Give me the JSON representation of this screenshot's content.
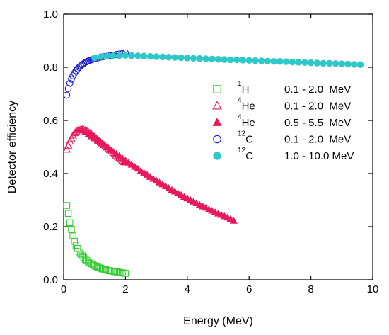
{
  "chart_data": {
    "type": "scatter",
    "xlabel": "Energy (MeV)",
    "ylabel": "Detector efficiency",
    "xlim": [
      0,
      10
    ],
    "ylim": [
      0,
      1.0
    ],
    "x_ticks": [
      0,
      2,
      4,
      6,
      8,
      10
    ],
    "y_ticks": [
      0.0,
      0.2,
      0.4,
      0.6,
      0.8,
      1.0
    ],
    "x_tick_labels": [
      "0",
      "2",
      "4",
      "6",
      "8",
      "10"
    ],
    "y_tick_labels": [
      "0.0",
      "0.2",
      "0.4",
      "0.6",
      "0.8",
      "1.0"
    ],
    "grid": false,
    "legend_position": "right",
    "series": [
      {
        "isotope_mass": "1",
        "isotope_symbol": "H",
        "range": "0.1 - 2.0  MeV",
        "marker": "square-open",
        "color": "#33cc33",
        "x": [
          0.1,
          0.15,
          0.2,
          0.25,
          0.3,
          0.35,
          0.4,
          0.45,
          0.5,
          0.55,
          0.6,
          0.65,
          0.7,
          0.75,
          0.8,
          0.85,
          0.9,
          0.95,
          1.0,
          1.05,
          1.1,
          1.15,
          1.2,
          1.25,
          1.3,
          1.35,
          1.4,
          1.45,
          1.5,
          1.55,
          1.6,
          1.65,
          1.7,
          1.75,
          1.8,
          1.85,
          1.9,
          1.95,
          2.0
        ],
        "y": [
          0.28,
          0.25,
          0.215,
          0.19,
          0.165,
          0.145,
          0.13,
          0.118,
          0.105,
          0.097,
          0.09,
          0.083,
          0.077,
          0.072,
          0.067,
          0.063,
          0.06,
          0.056,
          0.053,
          0.05,
          0.048,
          0.045,
          0.043,
          0.041,
          0.04,
          0.038,
          0.036,
          0.035,
          0.034,
          0.033,
          0.032,
          0.031,
          0.03,
          0.029,
          0.028,
          0.027,
          0.026,
          0.025,
          0.024
        ]
      },
      {
        "isotope_mass": "4",
        "isotope_symbol": "He",
        "range": "0.1 - 2.0  MeV",
        "marker": "triangle-open",
        "color": "#e6195a",
        "x": [
          0.1,
          0.15,
          0.2,
          0.25,
          0.3,
          0.35,
          0.4,
          0.45,
          0.5,
          0.55,
          0.6,
          0.65,
          0.7,
          0.75,
          0.8,
          0.85,
          0.9,
          0.95,
          1.0,
          1.05,
          1.1,
          1.15,
          1.2,
          1.25,
          1.3,
          1.35,
          1.4,
          1.45,
          1.5,
          1.55,
          1.6,
          1.65,
          1.7,
          1.75,
          1.8,
          1.85,
          1.9,
          1.95,
          2.0
        ],
        "y": [
          0.49,
          0.505,
          0.52,
          0.532,
          0.543,
          0.552,
          0.558,
          0.562,
          0.565,
          0.566,
          0.566,
          0.565,
          0.563,
          0.56,
          0.556,
          0.552,
          0.548,
          0.543,
          0.538,
          0.533,
          0.528,
          0.523,
          0.518,
          0.513,
          0.508,
          0.503,
          0.498,
          0.493,
          0.488,
          0.483,
          0.478,
          0.473,
          0.468,
          0.463,
          0.458,
          0.453,
          0.448,
          0.443,
          0.438
        ]
      },
      {
        "isotope_mass": "4",
        "isotope_symbol": "He",
        "range": "0.5 - 5.5  MeV",
        "marker": "triangle-filled",
        "color": "#e6195a",
        "x": [
          0.5,
          0.6,
          0.7,
          0.8,
          0.9,
          1.0,
          1.1,
          1.2,
          1.3,
          1.4,
          1.5,
          1.6,
          1.7,
          1.8,
          1.9,
          2.0,
          2.1,
          2.2,
          2.3,
          2.4,
          2.5,
          2.6,
          2.7,
          2.8,
          2.9,
          3.0,
          3.1,
          3.2,
          3.3,
          3.4,
          3.5,
          3.6,
          3.7,
          3.8,
          3.9,
          4.0,
          4.1,
          4.2,
          4.3,
          4.4,
          4.5,
          4.6,
          4.7,
          4.8,
          4.9,
          5.0,
          5.1,
          5.2,
          5.3,
          5.4,
          5.5
        ],
        "y": [
          0.565,
          0.562,
          0.556,
          0.548,
          0.54,
          0.532,
          0.524,
          0.516,
          0.507,
          0.499,
          0.491,
          0.482,
          0.474,
          0.466,
          0.457,
          0.449,
          0.441,
          0.433,
          0.425,
          0.418,
          0.41,
          0.402,
          0.395,
          0.387,
          0.38,
          0.373,
          0.366,
          0.359,
          0.352,
          0.345,
          0.338,
          0.332,
          0.325,
          0.319,
          0.312,
          0.306,
          0.3,
          0.294,
          0.288,
          0.282,
          0.276,
          0.271,
          0.265,
          0.26,
          0.254,
          0.249,
          0.244,
          0.239,
          0.234,
          0.229,
          0.222
        ]
      },
      {
        "isotope_mass": "12",
        "isotope_symbol": "C",
        "range": "0.1 - 2.0  MeV",
        "marker": "circle-open",
        "color": "#1a1acc",
        "x": [
          0.1,
          0.15,
          0.2,
          0.25,
          0.3,
          0.35,
          0.4,
          0.45,
          0.5,
          0.55,
          0.6,
          0.65,
          0.7,
          0.75,
          0.8,
          0.85,
          0.9,
          0.95,
          1.0,
          1.1,
          1.2,
          1.3,
          1.4,
          1.5,
          1.6,
          1.7,
          1.8,
          1.9,
          2.0
        ],
        "y": [
          0.695,
          0.72,
          0.74,
          0.755,
          0.768,
          0.778,
          0.787,
          0.794,
          0.8,
          0.805,
          0.81,
          0.814,
          0.818,
          0.821,
          0.824,
          0.826,
          0.828,
          0.83,
          0.832,
          0.835,
          0.838,
          0.84,
          0.842,
          0.844,
          0.846,
          0.848,
          0.85,
          0.852,
          0.854
        ]
      },
      {
        "isotope_mass": "12",
        "isotope_symbol": "C",
        "range": "1.0 - 10.0 MeV",
        "marker": "circle-filled",
        "color": "#2ec8c8",
        "x": [
          1.0,
          1.2,
          1.4,
          1.6,
          1.8,
          2.0,
          2.2,
          2.4,
          2.6,
          2.8,
          3.0,
          3.2,
          3.4,
          3.6,
          3.8,
          4.0,
          4.2,
          4.4,
          4.6,
          4.8,
          5.0,
          5.2,
          5.4,
          5.6,
          5.8,
          6.0,
          6.2,
          6.4,
          6.6,
          6.8,
          7.0,
          7.2,
          7.4,
          7.6,
          7.8,
          8.0,
          8.2,
          8.4,
          8.6,
          8.8,
          9.0,
          9.2,
          9.4,
          9.6
        ],
        "y": [
          0.835,
          0.84,
          0.842,
          0.843,
          0.844,
          0.845,
          0.844,
          0.843,
          0.842,
          0.841,
          0.84,
          0.839,
          0.838,
          0.837,
          0.836,
          0.835,
          0.834,
          0.833,
          0.832,
          0.831,
          0.83,
          0.829,
          0.828,
          0.828,
          0.827,
          0.826,
          0.825,
          0.824,
          0.823,
          0.822,
          0.822,
          0.821,
          0.82,
          0.819,
          0.818,
          0.817,
          0.816,
          0.815,
          0.815,
          0.814,
          0.813,
          0.812,
          0.811,
          0.81
        ]
      }
    ]
  }
}
